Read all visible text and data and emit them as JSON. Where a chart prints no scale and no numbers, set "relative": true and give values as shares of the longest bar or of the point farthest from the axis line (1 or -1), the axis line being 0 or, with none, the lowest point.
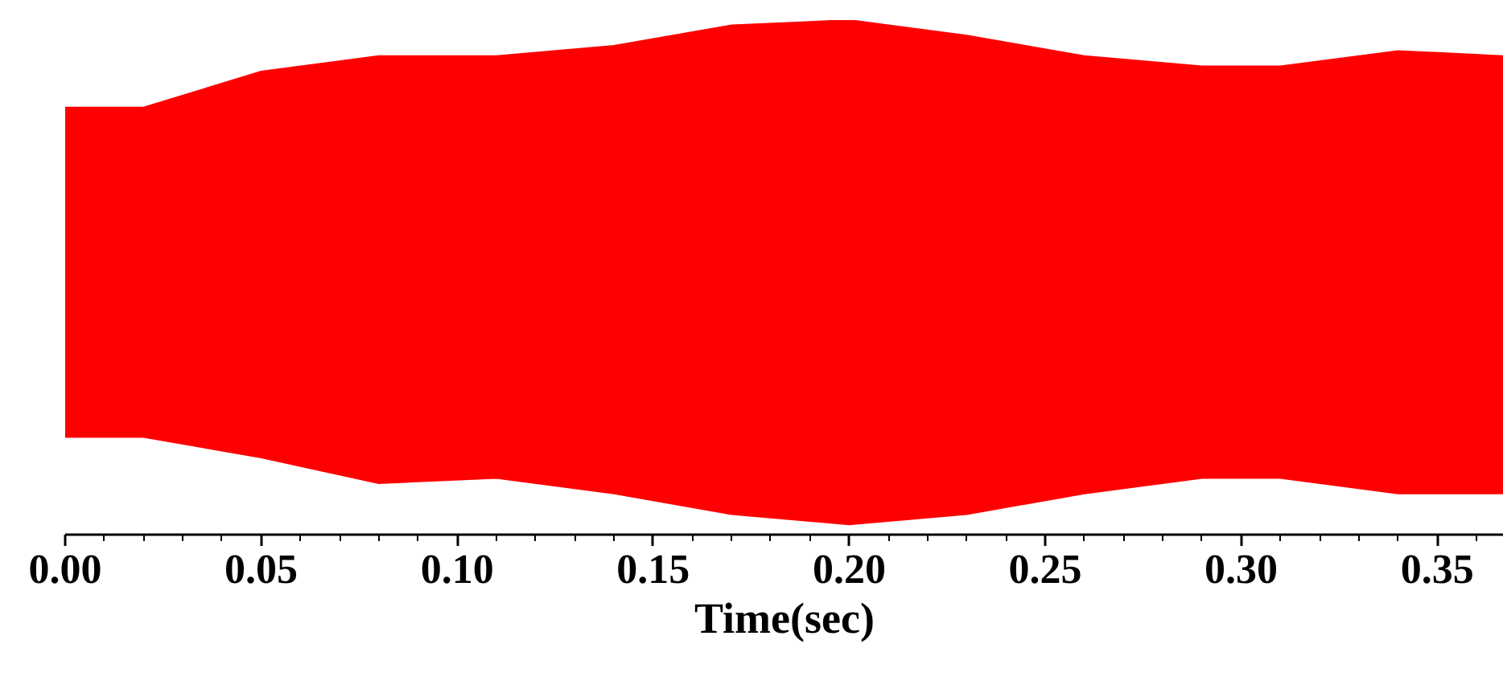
{
  "chart_data": {
    "type": "line",
    "relative": true,
    "xlabel": "Time(sec)",
    "xlim": [
      0,
      0.367
    ],
    "xticks": [
      {
        "value": 0,
        "label": "0.00"
      },
      {
        "value": 0.05,
        "label": "0.05"
      },
      {
        "value": 0.1,
        "label": "0.10"
      },
      {
        "value": 0.15,
        "label": "0.15"
      },
      {
        "value": 0.2,
        "label": "0.20"
      },
      {
        "value": 0.25,
        "label": "0.25"
      },
      {
        "value": 0.3,
        "label": "0.30"
      },
      {
        "value": 0.35,
        "label": "0.35"
      }
    ],
    "x": [
      0,
      0.02,
      0.05,
      0.08,
      0.11,
      0.14,
      0.17,
      0.2,
      0.23,
      0.26,
      0.29,
      0.31,
      0.34,
      0.367
    ],
    "series": [
      {
        "color": "#ff0000",
        "values": [
          0.83,
          0.83,
          0.9,
          0.93,
          0.93,
          0.95,
          0.99,
          1.0,
          0.97,
          0.93,
          0.91,
          0.91,
          0.94,
          0.93
        ]
      },
      {
        "color": "#ff0000",
        "values": [
          0.19,
          0.19,
          0.15,
          0.1,
          0.11,
          0.08,
          0.04,
          0.02,
          0.04,
          0.08,
          0.11,
          0.11,
          0.08,
          0.08
        ]
      }
    ],
    "grid": false
  }
}
